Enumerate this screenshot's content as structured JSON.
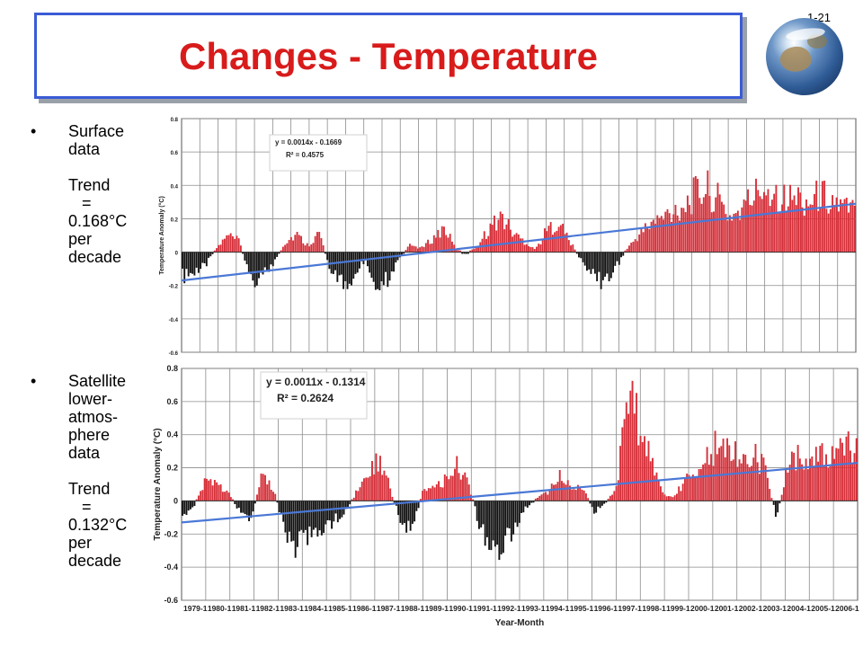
{
  "slide": {
    "title": "Changes - Temperature",
    "number": "1-21"
  },
  "bullets": [
    {
      "marker": "•",
      "lines": [
        "Surface",
        "data",
        "",
        "Trend",
        "   =",
        "0.168°C",
        "per",
        "decade"
      ]
    },
    {
      "marker": "•",
      "lines": [
        "Satellite",
        "lower-",
        "atmos-",
        "phere",
        "data",
        "",
        "Trend",
        "   =",
        "0.132°C",
        "per",
        "decade"
      ]
    }
  ],
  "chart_data": [
    {
      "type": "bar",
      "title": "",
      "ylabel": "Temperature Anomaly (°C)",
      "xlabel": "",
      "ylim": [
        -0.6,
        0.8
      ],
      "yticks": [
        "0.8",
        "0.6",
        "0.4",
        "0.2",
        "0",
        "-0.2",
        "-0.4",
        "-0.6"
      ],
      "grid": true,
      "colors": {
        "positive": "#d6303a",
        "negative": "#111111",
        "trend": "#4a78d6"
      },
      "equation": "y = 0.0014x - 0.1669",
      "r2": "R² = 0.4575",
      "trend_start": -0.17,
      "trend_end": 0.29,
      "monthly_anomaly_envelope": [
        -0.18,
        -0.16,
        -0.1,
        0.03,
        0.12,
        0.08,
        -0.2,
        -0.18,
        -0.08,
        0.07,
        0.13,
        0.05,
        0.14,
        -0.12,
        -0.24,
        -0.18,
        -0.06,
        -0.22,
        -0.2,
        -0.04,
        0.05,
        0.03,
        0.1,
        0.18,
        0.02,
        -0.02,
        0.06,
        0.18,
        0.26,
        0.14,
        0.08,
        0.02,
        0.16,
        0.22,
        0.08,
        -0.06,
        -0.16,
        -0.22,
        -0.12,
        0.02,
        0.12,
        0.2,
        0.24,
        0.3,
        0.34,
        0.42,
        0.46,
        0.38,
        0.26,
        0.3,
        0.4,
        0.48,
        0.44,
        0.38,
        0.4,
        0.36,
        0.42,
        0.38,
        0.32,
        0.3
      ]
    },
    {
      "type": "bar",
      "title": "",
      "ylabel": "Temperature Anomaly (°C)",
      "xlabel": "Year-Month",
      "ylim": [
        -0.6,
        0.8
      ],
      "yticks": [
        "0.8",
        "0.6",
        "0.4",
        "0.2",
        "0",
        "-0.2",
        "-0.4",
        "-0.6"
      ],
      "grid": true,
      "colors": {
        "positive": "#d6303a",
        "negative": "#111111",
        "trend": "#4a78d6"
      },
      "equation": "y = 0.0011x - 0.1314",
      "r2": "R² = 0.2624",
      "trend_start": -0.13,
      "trend_end": 0.23,
      "categories": [
        "1979-1",
        "1980-1",
        "1981-1",
        "1982-1",
        "1983-1",
        "1984-1",
        "1985-1",
        "1986-1",
        "1987-1",
        "1988-1",
        "1989-1",
        "1990-1",
        "1991-1",
        "1992-1",
        "1993-1",
        "1994-1",
        "1995-1",
        "1996-1",
        "1997-1",
        "1998-1",
        "1999-1",
        "2000-1",
        "2001-1",
        "2002-1",
        "2003-1",
        "2004-1",
        "2005-1",
        "2006-1"
      ],
      "monthly_anomaly_envelope": [
        -0.1,
        -0.04,
        0.14,
        0.12,
        0.06,
        -0.08,
        -0.14,
        0.2,
        0.08,
        -0.22,
        -0.34,
        -0.26,
        -0.2,
        -0.16,
        -0.1,
        0.02,
        0.22,
        0.3,
        0.14,
        -0.12,
        -0.24,
        0.06,
        0.1,
        0.16,
        0.28,
        0.14,
        -0.18,
        -0.32,
        -0.36,
        -0.2,
        -0.06,
        0.02,
        0.06,
        0.18,
        0.1,
        0.12,
        -0.08,
        -0.02,
        0.1,
        0.74,
        0.56,
        0.3,
        0.06,
        0.02,
        0.16,
        0.24,
        0.34,
        0.42,
        0.36,
        0.3,
        0.38,
        0.22,
        -0.12,
        0.24,
        0.36,
        0.28,
        0.32,
        0.3,
        0.38,
        0.4
      ]
    }
  ]
}
